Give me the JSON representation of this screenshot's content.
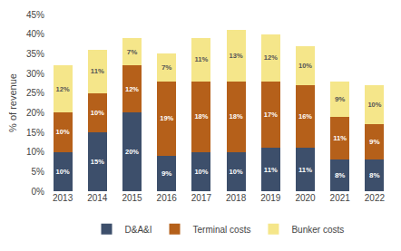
{
  "chart_data": {
    "type": "bar",
    "stacked": true,
    "data_labels": true,
    "grid": false,
    "legend": "bottom",
    "y_label": "% of revenue",
    "categories": [
      "2013",
      "2014",
      "2015",
      "2016",
      "2017",
      "2018",
      "2019",
      "2020",
      "2021",
      "2022"
    ],
    "series": [
      {
        "name": "D&A&I",
        "color": "#3d4f6b",
        "values": [
          10,
          15,
          20,
          9,
          10,
          10,
          11,
          11,
          8,
          8
        ],
        "value_labels": [
          "10%",
          "15%",
          "20%",
          "9%",
          "10%",
          "10%",
          "11%",
          "11%",
          "8%",
          "8%"
        ]
      },
      {
        "name": "Terminal costs",
        "color": "#b5601a",
        "values": [
          10,
          10,
          12,
          19,
          18,
          18,
          17,
          16,
          11,
          9
        ],
        "value_labels": [
          "10%",
          "10%",
          "12%",
          "19%",
          "18%",
          "18%",
          "17%",
          "16%",
          "11%",
          "9%"
        ]
      },
      {
        "name": "Bunker costs",
        "color": "#f5e68a",
        "values": [
          12,
          11,
          7,
          7,
          11,
          13,
          12,
          10,
          9,
          10
        ],
        "value_labels": [
          "12%",
          "11%",
          "7%",
          "7%",
          "11%",
          "13%",
          "12%",
          "10%",
          "9%",
          "10%"
        ]
      }
    ],
    "ylim": [
      0,
      45
    ],
    "yticks": [
      {
        "value": 0,
        "label": "0%"
      },
      {
        "value": 5,
        "label": "5%"
      },
      {
        "value": 10,
        "label": "10%"
      },
      {
        "value": 15,
        "label": "15%"
      },
      {
        "value": 20,
        "label": "20%"
      },
      {
        "value": 25,
        "label": "25%"
      },
      {
        "value": 30,
        "label": "30%"
      },
      {
        "value": 35,
        "label": "35%"
      },
      {
        "value": 40,
        "label": "40%"
      },
      {
        "value": 45,
        "label": "45%"
      }
    ]
  }
}
